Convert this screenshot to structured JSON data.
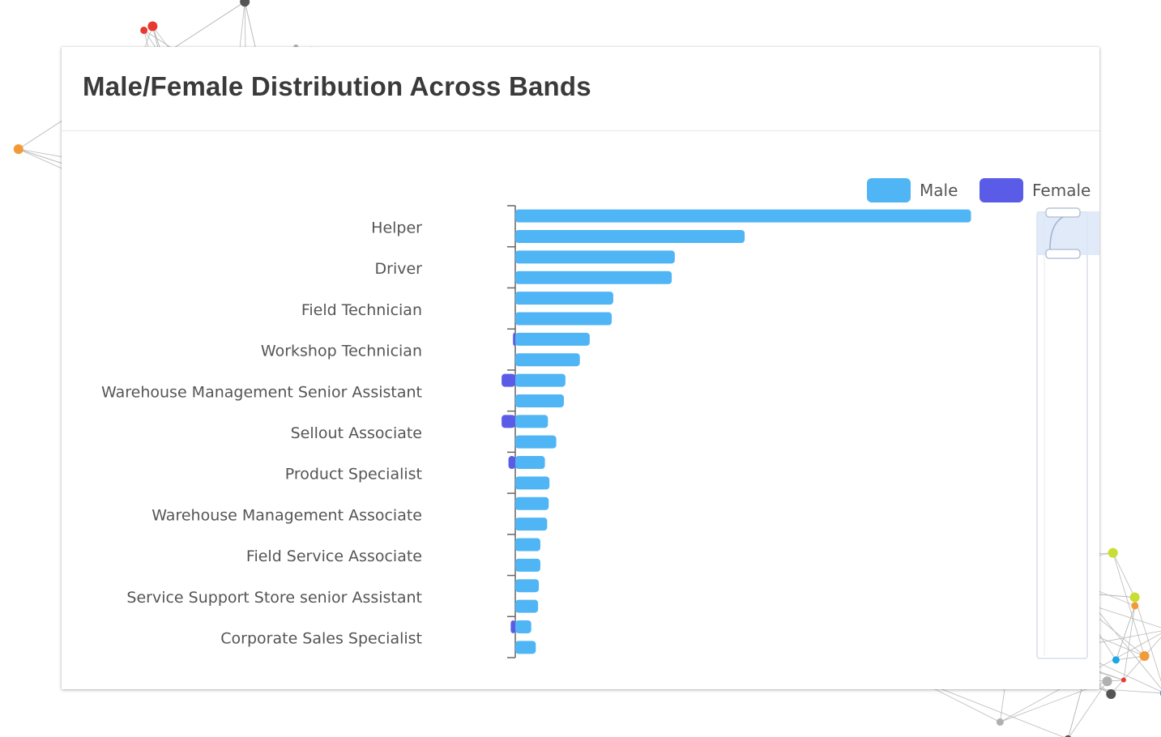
{
  "card": {
    "title": "Male/Female Distribution Across Bands"
  },
  "colors": {
    "male": "#4fb5f5",
    "female": "#5a5ce8",
    "label": "#555555",
    "axis": "#666666"
  },
  "chart_data": {
    "type": "bar",
    "orientation": "horizontal",
    "title": "Male/Female Distribution Across Bands",
    "legend": {
      "position": "top-right",
      "entries": [
        "Male",
        "Female"
      ]
    },
    "tick_labels": [
      "Helper",
      "Driver",
      "Field Technician",
      "Workshop Technician",
      "Warehouse Management Senior Assistant",
      "Sellout Associate",
      "Product Specialist",
      "Warehouse Management Associate",
      "Field Service Associate",
      "Service Support Store senior Assistant",
      "Corporate Sales Specialist"
    ],
    "series": [
      {
        "name": "Male",
        "values": [
          600,
          302,
          210,
          206,
          129,
          127,
          98,
          85,
          66,
          64,
          43,
          54,
          39,
          45,
          44,
          42,
          33,
          33,
          31,
          30,
          21,
          27
        ]
      },
      {
        "name": "Female",
        "values": [
          0,
          0,
          0,
          0,
          0,
          0,
          3,
          0,
          18,
          0,
          18,
          0,
          9,
          0,
          0,
          0,
          0,
          0,
          0,
          0,
          6,
          0
        ]
      }
    ],
    "xlim": [
      0,
      640
    ]
  }
}
